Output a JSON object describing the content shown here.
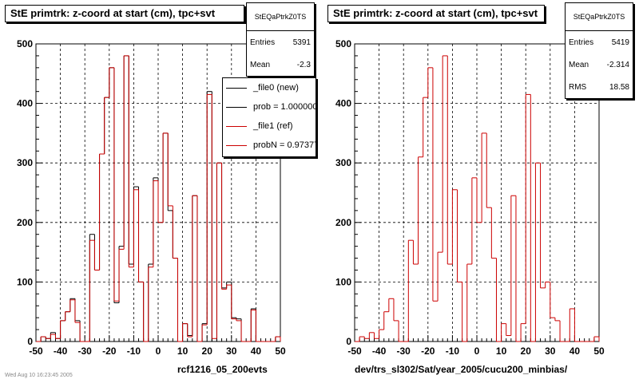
{
  "chart_data": [
    {
      "type": "histogram",
      "title": "StE primtrk: z-coord at start (cm), tpc+svt",
      "xlabel": "rcf1216_05_200evts",
      "ylabel": "",
      "xlim": [
        -50,
        50
      ],
      "ylim": [
        0,
        500
      ],
      "xticks": [
        "-50",
        "-40",
        "-30",
        "-20",
        "-10",
        "0",
        "10",
        "20",
        "30",
        "40",
        "50"
      ],
      "yticks": [
        "0",
        "100",
        "200",
        "300",
        "400",
        "500"
      ],
      "grid": true,
      "bin_width": 2,
      "x_start": -50,
      "stats": {
        "name": "StEQaPtrkZ0TS",
        "entries_label": "Entries",
        "entries": "5391",
        "mean_label": "Mean",
        "mean": "-2.3"
      },
      "legend": [
        {
          "label": "_file0 (new)",
          "color": "#000000"
        },
        {
          "label": "prob = 1.000000",
          "color": "#000000"
        },
        {
          "label": "_file1 (ref)",
          "color": "#cc0000"
        },
        {
          "label": "probN = 0.973779",
          "color": "#cc0000"
        }
      ],
      "series": [
        {
          "name": "_file0 (new)",
          "color": "#000000",
          "values": [
            0,
            8,
            5,
            15,
            5,
            35,
            50,
            72,
            35,
            0,
            0,
            180,
            120,
            315,
            410,
            460,
            65,
            160,
            480,
            130,
            260,
            100,
            0,
            130,
            275,
            200,
            350,
            220,
            140,
            0,
            30,
            10,
            245,
            0,
            30,
            420,
            0,
            300,
            90,
            100,
            40,
            38,
            0,
            0,
            55,
            0,
            0,
            0,
            0,
            8
          ]
        },
        {
          "name": "_file1 (ref)",
          "color": "#cc0000",
          "values": [
            0,
            8,
            5,
            12,
            5,
            35,
            50,
            70,
            32,
            0,
            0,
            170,
            120,
            315,
            410,
            460,
            68,
            155,
            480,
            125,
            255,
            100,
            0,
            125,
            270,
            200,
            350,
            228,
            140,
            0,
            30,
            8,
            245,
            0,
            28,
            415,
            5,
            300,
            88,
            95,
            38,
            35,
            0,
            0,
            53,
            0,
            0,
            0,
            0,
            8
          ]
        }
      ]
    },
    {
      "type": "histogram",
      "title": "StE primtrk: z-coord at start (cm), tpc+svt",
      "xlabel": "dev/trs_sl302/Sat/year_2005/cucu200_minbias/",
      "ylabel": "",
      "xlim": [
        -50,
        50
      ],
      "ylim": [
        0,
        500
      ],
      "xticks": [
        "-50",
        "-40",
        "-30",
        "-20",
        "-10",
        "0",
        "10",
        "20",
        "30",
        "40",
        "50"
      ],
      "yticks": [
        "0",
        "100",
        "200",
        "300",
        "400",
        "500"
      ],
      "grid": true,
      "bin_width": 2,
      "x_start": -50,
      "stats": {
        "name": "StEQaPtrkZ0TS",
        "entries_label": "Entries",
        "entries": "5419",
        "mean_label": "Mean",
        "mean": "-2.314",
        "rms_label": "RMS",
        "rms": "18.58"
      },
      "series": [
        {
          "name": "",
          "color": "#cc0000",
          "values": [
            0,
            8,
            5,
            15,
            5,
            20,
            50,
            72,
            35,
            0,
            0,
            170,
            130,
            310,
            410,
            460,
            68,
            150,
            480,
            130,
            255,
            100,
            0,
            130,
            275,
            200,
            350,
            225,
            140,
            0,
            30,
            10,
            245,
            0,
            30,
            415,
            0,
            300,
            90,
            100,
            40,
            35,
            0,
            0,
            55,
            0,
            0,
            0,
            0,
            8
          ]
        }
      ]
    }
  ],
  "footer": "Wed Aug 10 16:23:45 2005"
}
